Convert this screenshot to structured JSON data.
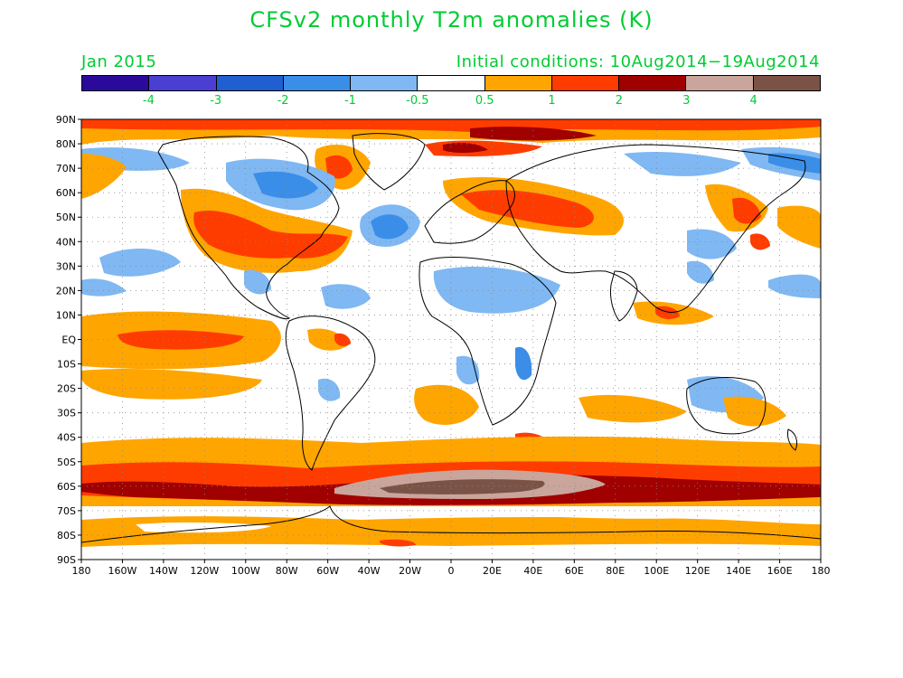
{
  "title": "CFSv2 monthly T2m anomalies (K)",
  "subtitle_left": "Jan 2015",
  "subtitle_right": "Initial conditions: 10Aug2014−19Aug2014",
  "colorbar": {
    "colors": [
      "#2b0a9b",
      "#4a3fd1",
      "#1f5fd0",
      "#3a8ee8",
      "#7fb8f2",
      "#ffffff",
      "#ffa500",
      "#ff3c00",
      "#a00000",
      "#c9a59c",
      "#7b5346"
    ],
    "labels": [
      "-4",
      "-3",
      "-2",
      "-1",
      "-0.5",
      "0.5",
      "1",
      "2",
      "3",
      "4"
    ]
  },
  "lat_labels": [
    "90N",
    "80N",
    "70N",
    "60N",
    "50N",
    "40N",
    "30N",
    "20N",
    "10N",
    "EQ",
    "10S",
    "20S",
    "30S",
    "40S",
    "50S",
    "60S",
    "70S",
    "80S",
    "90S"
  ],
  "lon_labels": [
    "180",
    "160W",
    "140W",
    "120W",
    "100W",
    "80W",
    "60W",
    "40W",
    "20W",
    "0",
    "20E",
    "40E",
    "60E",
    "80E",
    "100E",
    "120E",
    "140E",
    "160E",
    "180"
  ]
}
